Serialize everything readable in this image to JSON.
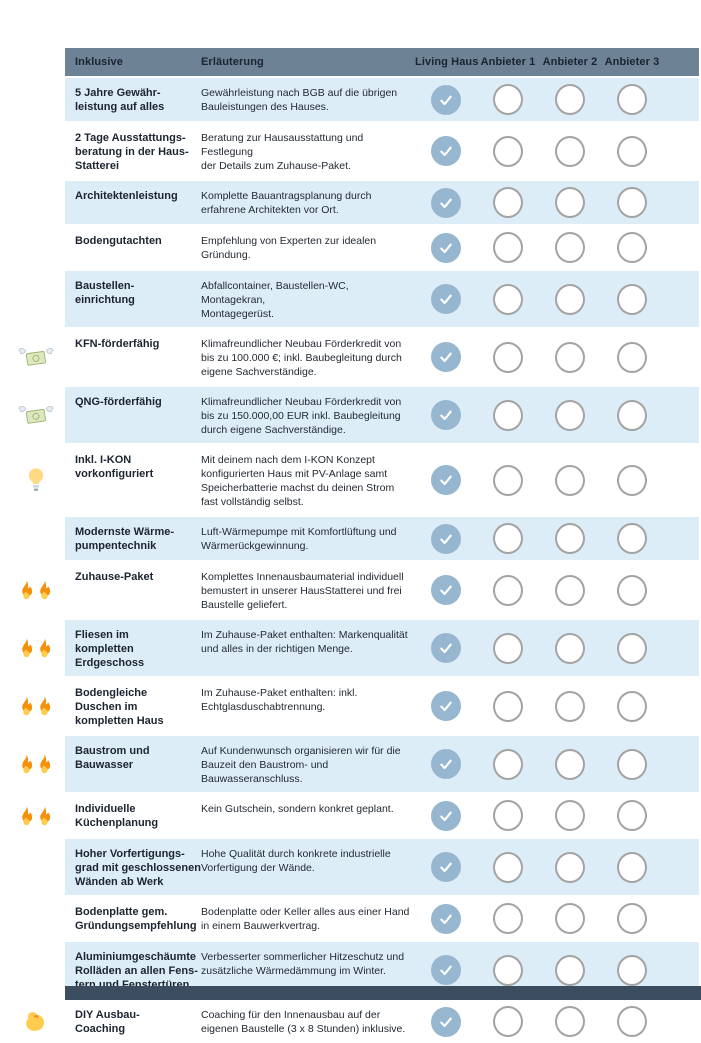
{
  "table": {
    "columns": {
      "inklusive": "Inklusive",
      "erlaeuterung": "Erläuterung",
      "providers": [
        "Living Haus",
        "Anbieter 1",
        "Anbieter 2",
        "Anbieter 3"
      ]
    },
    "rows": [
      {
        "icon": "",
        "title": "5 Jahre Gewähr-\nleistung auf alles",
        "description": "Gewährleistung nach BGB auf die übrigen\nBauleistungen des Hauses.",
        "checks": [
          true,
          false,
          false,
          false
        ]
      },
      {
        "icon": "",
        "title": "2 Tage Ausstattungs-\nberatung in der Haus-\nStatterei",
        "description": "Beratung zur Hausausstattung und Festlegung\nder Details zum Zuhause-Paket.",
        "checks": [
          true,
          false,
          false,
          false
        ]
      },
      {
        "icon": "",
        "title": "Architektenleistung",
        "description": "Komplette Bauantragsplanung durch\nerfahrene Architekten vor Ort.",
        "checks": [
          true,
          false,
          false,
          false
        ]
      },
      {
        "icon": "",
        "title": "Bodengutachten",
        "description": "Empfehlung von Experten zur idealen Gründung.",
        "checks": [
          true,
          false,
          false,
          false
        ]
      },
      {
        "icon": "",
        "title": "Baustellen-\neinrichtung",
        "description": "Abfallcontainer, Baustellen-WC, Montagekran,\nMontagegerüst.",
        "checks": [
          true,
          false,
          false,
          false
        ]
      },
      {
        "icon": "money-with-wings",
        "title": "KFN-förderfähig",
        "description": "Klimafreundlicher Neubau Förderkredit von\nbis zu 100.000 €; inkl. Baubegleitung durch\neigene Sachverständige.",
        "checks": [
          true,
          false,
          false,
          false
        ]
      },
      {
        "icon": "money-with-wings",
        "title": "QNG-förderfähig",
        "description": "Klimafreundlicher Neubau Förderkredit von\nbis zu 150.000,00 EUR inkl. Baubegleitung\ndurch eigene Sachverständige.",
        "checks": [
          true,
          false,
          false,
          false
        ]
      },
      {
        "icon": "light-bulb",
        "title": "Inkl. I-KON\nvorkonfiguriert",
        "description": "Mit deinem nach dem I-KON Konzept\nkonfigurierten Haus mit PV-Anlage samt\nSpeicherbatterie machst du deinen Strom\nfast vollständig selbst.",
        "checks": [
          true,
          false,
          false,
          false
        ]
      },
      {
        "icon": "",
        "title": "Modernste Wärme-\npumpentechnik",
        "description": "Luft-Wärmepumpe mit Komfortlüftung und\nWärmerückgewinnung.",
        "checks": [
          true,
          false,
          false,
          false
        ]
      },
      {
        "icon": "fire-double",
        "title": "Zuhause-Paket",
        "description": "Komplettes Innenausbaumaterial individuell\nbemustert in unserer HausStatterei und frei\nBaustelle geliefert.",
        "checks": [
          true,
          false,
          false,
          false
        ]
      },
      {
        "icon": "fire-double",
        "title": "Fliesen im\nkompletten\nErdgeschoss",
        "description": "Im Zuhause-Paket enthalten: Markenqualität\nund alles in der richtigen Menge.",
        "checks": [
          true,
          false,
          false,
          false
        ]
      },
      {
        "icon": "fire-double",
        "title": "Bodengleiche\nDuschen im\nkompletten Haus",
        "description": "Im Zuhause-Paket enthalten: inkl.\nEchtglasduschabtrennung.",
        "checks": [
          true,
          false,
          false,
          false
        ]
      },
      {
        "icon": "fire-double",
        "title": "Baustrom und\nBauwasser",
        "description": "Auf Kundenwunsch organisieren wir für die\nBauzeit den Baustrom- und Bauwasseranschluss.",
        "checks": [
          true,
          false,
          false,
          false
        ]
      },
      {
        "icon": "fire-double",
        "title": "Individuelle\nKüchenplanung",
        "description": "Kein Gutschein, sondern konkret geplant.",
        "checks": [
          true,
          false,
          false,
          false
        ]
      },
      {
        "icon": "",
        "title": "Hoher Vorfertigungs-\ngrad mit geschlossenen\nWänden ab Werk",
        "description": "Hohe Qualität durch konkrete industrielle\nVorfertigung der Wände.",
        "checks": [
          true,
          false,
          false,
          false
        ]
      },
      {
        "icon": "",
        "title": "Bodenplatte gem.\nGründungsempfehlung",
        "description": "Bodenplatte oder Keller alles aus einer Hand\nin einem Bauwerkvertrag.",
        "checks": [
          true,
          false,
          false,
          false
        ]
      },
      {
        "icon": "",
        "title": "Aluminiumgeschäumte\nRolläden an allen Fens-\ntern und Fenstertüren",
        "description": "Verbesserter sommerlicher Hitzeschutz und\nzusätzliche Wärmedämmung im Winter.",
        "checks": [
          true,
          false,
          false,
          false
        ]
      },
      {
        "icon": "flexed-biceps",
        "title": "DIY Ausbau-\nCoaching",
        "description": "Coaching für den Innenausbau auf der\neigenen Baustelle (3 x 8 Stunden) inklusive.",
        "checks": [
          true,
          false,
          false,
          false
        ]
      }
    ]
  },
  "colors": {
    "header_bg": "#6e8296",
    "row_tint": "#ddedf8",
    "check_fill": "#97b7d1",
    "circle_border": "#a3a3a3",
    "footer_bar": "#3d4d60"
  }
}
